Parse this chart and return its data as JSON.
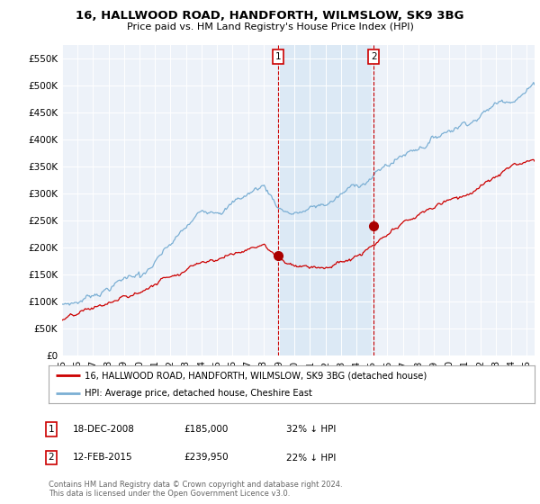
{
  "title": "16, HALLWOOD ROAD, HANDFORTH, WILMSLOW, SK9 3BG",
  "subtitle": "Price paid vs. HM Land Registry's House Price Index (HPI)",
  "ylim": [
    0,
    575000
  ],
  "yticks": [
    0,
    50000,
    100000,
    150000,
    200000,
    250000,
    300000,
    350000,
    400000,
    450000,
    500000,
    550000
  ],
  "ytick_labels": [
    "£0",
    "£50K",
    "£100K",
    "£150K",
    "£200K",
    "£250K",
    "£300K",
    "£350K",
    "£400K",
    "£450K",
    "£500K",
    "£550K"
  ],
  "hpi_color": "#7bafd4",
  "hpi_fill_color": "#dce9f5",
  "price_color": "#cc0000",
  "marker_color": "#aa0000",
  "purchase1_date": 2008.96,
  "purchase1_price": 185000,
  "purchase2_date": 2015.12,
  "purchase2_price": 239950,
  "legend_line1": "16, HALLWOOD ROAD, HANDFORTH, WILMSLOW, SK9 3BG (detached house)",
  "legend_line2": "HPI: Average price, detached house, Cheshire East",
  "table_row1": [
    "1",
    "18-DEC-2008",
    "£185,000",
    "32% ↓ HPI"
  ],
  "table_row2": [
    "2",
    "12-FEB-2015",
    "£239,950",
    "22% ↓ HPI"
  ],
  "footnote": "Contains HM Land Registry data © Crown copyright and database right 2024.\nThis data is licensed under the Open Government Licence v3.0.",
  "background_color": "#ffffff",
  "plot_bg_color": "#edf2f9"
}
